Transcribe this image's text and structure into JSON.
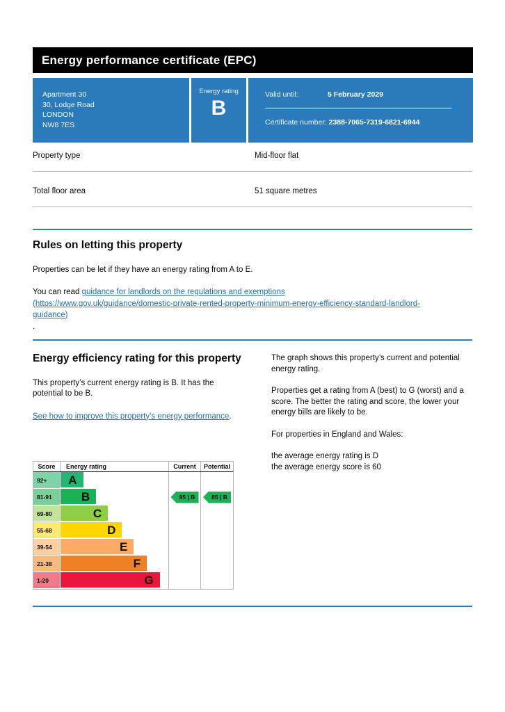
{
  "page": {
    "title": "Energy performance certificate (EPC)"
  },
  "summary": {
    "address_lines": [
      "Apartment 30",
      "30, Lodge Road",
      "LONDON",
      "NW8 7ES"
    ],
    "energy_rating_label": "Energy rating",
    "energy_rating": "B",
    "valid_until_label": "Valid until:",
    "valid_until": "5 February 2029",
    "certificate_number_label": "Certificate number:",
    "certificate_number": "2388-7065-7319-6821-6944"
  },
  "property_facts": [
    {
      "label": "Property type",
      "value": "Mid-floor flat"
    },
    {
      "label": "Total floor area",
      "value": "51 square metres"
    }
  ],
  "letting_rules": {
    "heading": "Rules on letting this property",
    "paragraph1": "Properties can be let if they have an energy rating from A to E.",
    "paragraph2_prefix": "You can read ",
    "link_text": "guidance for landlords on the regulations and exemptions",
    "link_url_text": "(https://www.gov.uk/guidance/domestic-private-rented-property-minimum-energy-efficiency-standard-landlord-guidance)",
    "paragraph2_suffix": "."
  },
  "efficiency_section": {
    "heading": "Energy efficiency rating for this property",
    "paragraph": "This property’s current energy rating is B. It has the potential to be B.",
    "link_text": "See how to improve this property’s energy performance",
    "link_suffix": ".",
    "right_paragraphs": [
      "The graph shows this property’s current and potential energy rating.",
      "Properties get a rating from A (best) to G (worst) and a score. The better the rating and score, the lower your energy bills are likely to be.",
      "For properties in England and Wales:",
      "the average energy rating is D",
      "the average energy score is 60"
    ]
  },
  "chart_data": {
    "type": "bar",
    "title": "Energy efficiency rating bands",
    "headers": {
      "score": "Score",
      "rating": "Energy rating",
      "current": "Current",
      "potential": "Potential"
    },
    "bands": [
      {
        "score_range": "92+",
        "letter": "A",
        "color": "#22b573",
        "tint": "#7ed4a9",
        "width_pct": 21
      },
      {
        "score_range": "81-91",
        "letter": "B",
        "color": "#1ab157",
        "tint": "#7ad099",
        "width_pct": 33
      },
      {
        "score_range": "69-80",
        "letter": "C",
        "color": "#8dce46",
        "tint": "#c1e498",
        "width_pct": 44
      },
      {
        "score_range": "55-68",
        "letter": "D",
        "color": "#ffd500",
        "tint": "#ffe96e",
        "width_pct": 57
      },
      {
        "score_range": "39-54",
        "letter": "E",
        "color": "#fcaa65",
        "tint": "#fdcfa3",
        "width_pct": 68
      },
      {
        "score_range": "21-38",
        "letter": "F",
        "color": "#ef8023",
        "tint": "#f6b97e",
        "width_pct": 80
      },
      {
        "score_range": "1-20",
        "letter": "G",
        "color": "#e9153b",
        "tint": "#f2798c",
        "width_pct": 92
      }
    ],
    "current": {
      "score": 85,
      "band": "B",
      "label": "85 | B",
      "color": "#1ab157"
    },
    "potential": {
      "score": 85,
      "band": "B",
      "label": "85 | B",
      "color": "#1ab157"
    }
  },
  "colors": {
    "header_bg": "#000000",
    "brand_blue": "#2b7abc",
    "rule_blue": "#2e7abc",
    "link_blue": "#1d70b8",
    "divider_grey": "#b1b4b6",
    "text_black": "#0b0c0c"
  }
}
